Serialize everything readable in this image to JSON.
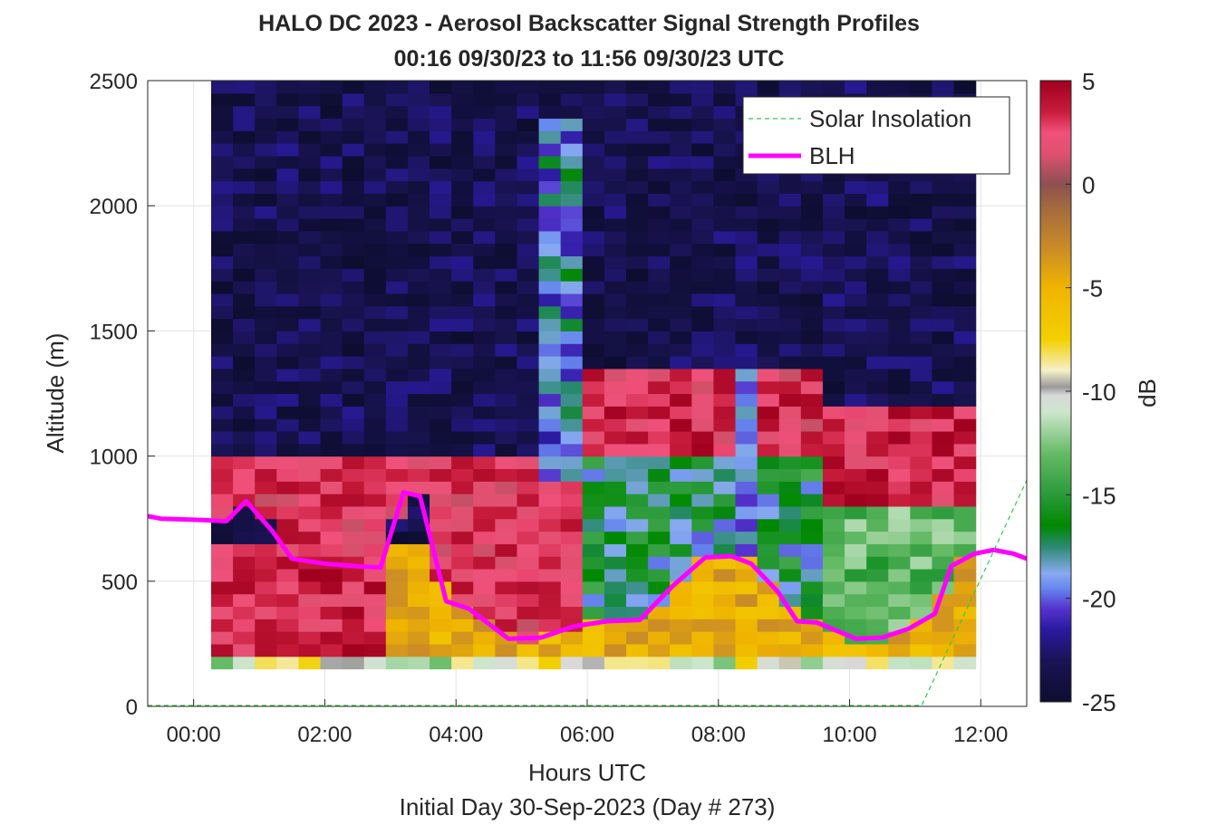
{
  "chart_data": {
    "type": "heatmap",
    "title": "HALO DC 2023 - Aerosol Backscatter Signal Strength Profiles",
    "subtitle": "00:16 09/30/23 to 11:56 09/30/23  UTC",
    "xlabel": "Hours UTC",
    "ylabel": "Altitude (m)",
    "footer": "Initial Day 30-Sep-2023 (Day # 273)",
    "xlim": [
      -0.7,
      12.7
    ],
    "ylim": [
      0,
      2500
    ],
    "x_ticks": [
      0,
      2,
      4,
      6,
      8,
      10,
      12
    ],
    "x_tick_labels": [
      "00:00",
      "02:00",
      "04:00",
      "06:00",
      "08:00",
      "10:00",
      "12:00"
    ],
    "y_ticks": [
      0,
      500,
      1000,
      1500,
      2000,
      2500
    ],
    "y_tick_labels": [
      "0",
      "500",
      "1000",
      "1500",
      "2000",
      "2500"
    ],
    "grid": true,
    "colorbar": {
      "label": "dB",
      "min": -25,
      "max": 5,
      "ticks": [
        5,
        0,
        -5,
        -10,
        -15,
        -20,
        -25
      ],
      "tick_labels": [
        "5",
        "0",
        "-5",
        "-10",
        "-15",
        "-20",
        "-25"
      ]
    },
    "legend": {
      "position": "top-right",
      "entries": [
        {
          "label": "Solar Insolation",
          "color": "#2ecc40",
          "style": "dashed"
        },
        {
          "label": "BLH",
          "color": "#ff00ff",
          "style": "solid"
        }
      ]
    },
    "heatmap": {
      "time_start_hours": 0.267,
      "time_end_hours": 11.933,
      "bin_width_hours": 0.333,
      "altitude_start_m": 150,
      "altitude_bin_m": 50,
      "altitude_max_m": 2500
    },
    "series": [
      {
        "name": "BLH",
        "x": [
          -0.7,
          -0.5,
          0.1,
          0.5,
          0.8,
          1.2,
          1.5,
          2.0,
          2.5,
          2.85,
          3.2,
          3.45,
          3.85,
          4.2,
          4.8,
          5.3,
          5.8,
          6.3,
          6.8,
          7.3,
          7.8,
          8.2,
          8.5,
          8.9,
          9.2,
          9.5,
          10.1,
          10.5,
          10.9,
          11.3,
          11.55,
          11.9,
          12.2,
          12.5,
          12.7
        ],
        "y": [
          760,
          750,
          745,
          740,
          820,
          700,
          590,
          570,
          560,
          555,
          855,
          840,
          420,
          390,
          270,
          275,
          320,
          340,
          345,
          480,
          595,
          600,
          570,
          460,
          340,
          335,
          270,
          275,
          310,
          370,
          560,
          610,
          625,
          610,
          590
        ]
      },
      {
        "name": "Solar Insolation",
        "x": [
          -0.7,
          11.1,
          12.7
        ],
        "y": [
          0,
          0,
          900
        ]
      }
    ],
    "colormap_stops_db": [
      {
        "db": -25,
        "color": "#0d0d30"
      },
      {
        "db": -23,
        "color": "#1a1455"
      },
      {
        "db": -21.5,
        "color": "#2a1aa0"
      },
      {
        "db": -20.5,
        "color": "#5533cc"
      },
      {
        "db": -19.5,
        "color": "#6688ee"
      },
      {
        "db": -18.8,
        "color": "#88aaf0"
      },
      {
        "db": -17.5,
        "color": "#2a8a70"
      },
      {
        "db": -16.5,
        "color": "#008800"
      },
      {
        "db": -15,
        "color": "#2a9a3a"
      },
      {
        "db": -13,
        "color": "#66bb66"
      },
      {
        "db": -11,
        "color": "#cce6cc"
      },
      {
        "db": -10.2,
        "color": "#d9d9d9"
      },
      {
        "db": -9.8,
        "color": "#999999"
      },
      {
        "db": -9,
        "color": "#f5f0c8"
      },
      {
        "db": -7.5,
        "color": "#f2d000"
      },
      {
        "db": -5,
        "color": "#f0b400"
      },
      {
        "db": -3,
        "color": "#c88a28"
      },
      {
        "db": -1,
        "color": "#a06840"
      },
      {
        "db": 0,
        "color": "#8c5050"
      },
      {
        "db": 1.5,
        "color": "#e05070"
      },
      {
        "db": 2.5,
        "color": "#f0507a"
      },
      {
        "db": 3.5,
        "color": "#c81c3c"
      },
      {
        "db": 5,
        "color": "#a0001e"
      }
    ]
  }
}
